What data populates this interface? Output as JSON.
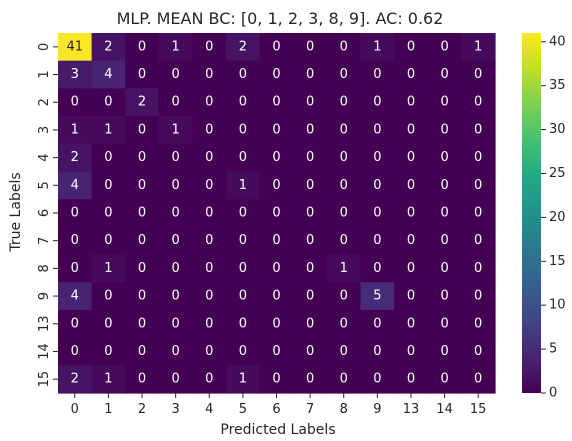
{
  "chart_data": {
    "type": "heatmap",
    "title": "MLP. MEAN BC: [0, 1, 2, 3, 8, 9]. AC: 0.62",
    "xlabel": "Predicted Labels",
    "ylabel": "True Labels",
    "x_categories": [
      "0",
      "1",
      "2",
      "3",
      "4",
      "5",
      "6",
      "7",
      "8",
      "9",
      "13",
      "14",
      "15"
    ],
    "y_categories": [
      "0",
      "1",
      "2",
      "3",
      "4",
      "5",
      "6",
      "7",
      "8",
      "9",
      "13",
      "14",
      "15"
    ],
    "values": [
      [
        41,
        2,
        0,
        1,
        0,
        2,
        0,
        0,
        0,
        1,
        0,
        0,
        1
      ],
      [
        3,
        4,
        0,
        0,
        0,
        0,
        0,
        0,
        0,
        0,
        0,
        0,
        0
      ],
      [
        0,
        0,
        2,
        0,
        0,
        0,
        0,
        0,
        0,
        0,
        0,
        0,
        0
      ],
      [
        1,
        1,
        0,
        1,
        0,
        0,
        0,
        0,
        0,
        0,
        0,
        0,
        0
      ],
      [
        2,
        0,
        0,
        0,
        0,
        0,
        0,
        0,
        0,
        0,
        0,
        0,
        0
      ],
      [
        4,
        0,
        0,
        0,
        0,
        1,
        0,
        0,
        0,
        0,
        0,
        0,
        0
      ],
      [
        0,
        0,
        0,
        0,
        0,
        0,
        0,
        0,
        0,
        0,
        0,
        0,
        0
      ],
      [
        0,
        0,
        0,
        0,
        0,
        0,
        0,
        0,
        0,
        0,
        0,
        0,
        0
      ],
      [
        0,
        1,
        0,
        0,
        0,
        0,
        0,
        0,
        1,
        0,
        0,
        0,
        0
      ],
      [
        4,
        0,
        0,
        0,
        0,
        0,
        0,
        0,
        0,
        5,
        0,
        0,
        0
      ],
      [
        0,
        0,
        0,
        0,
        0,
        0,
        0,
        0,
        0,
        0,
        0,
        0,
        0
      ],
      [
        0,
        0,
        0,
        0,
        0,
        0,
        0,
        0,
        0,
        0,
        0,
        0,
        0
      ],
      [
        2,
        1,
        0,
        0,
        0,
        1,
        0,
        0,
        0,
        0,
        0,
        0,
        0
      ]
    ],
    "colormap": "viridis",
    "vmin": 0,
    "vmax": 41,
    "colorbar_ticks": [
      0,
      5,
      10,
      15,
      20,
      25,
      30,
      35,
      40
    ],
    "grid": false,
    "legend": "colorbar-right"
  }
}
